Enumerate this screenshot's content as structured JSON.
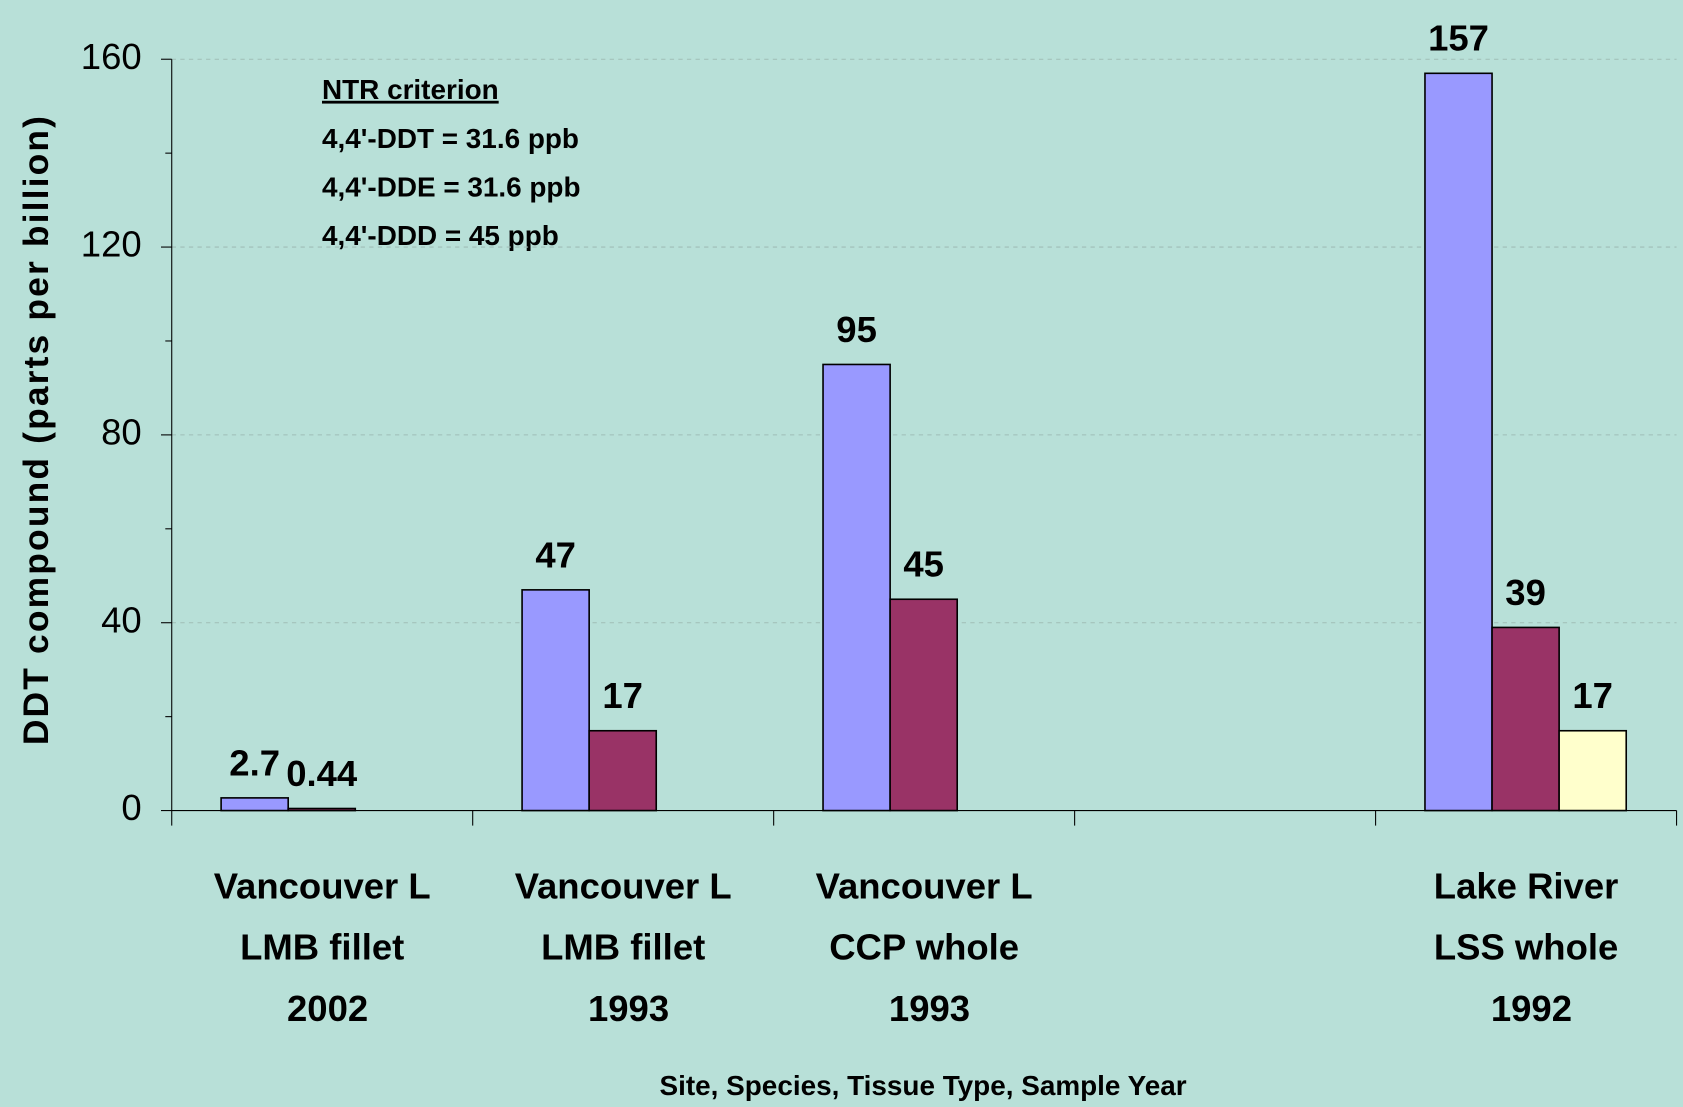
{
  "chart_data": {
    "type": "bar",
    "y_label": "DDT compound (parts per billion)",
    "x_label": "Site, Species, Tissue Type, Sample Year",
    "annotation": {
      "title": "NTR criterion",
      "lines": [
        "4,4'-DDT = 31.6 ppb",
        "4,4'-DDE = 31.6 ppb",
        "4,4'-DDD = 45 ppb"
      ]
    },
    "categories": [
      [
        "Vancouver L",
        "LMB fillet",
        "2002"
      ],
      [
        "Vancouver L",
        "LMB fillet",
        "1993"
      ],
      [
        "Vancouver L",
        "CCP whole",
        "1993"
      ],
      null,
      [
        "Lake River",
        "LSS whole",
        "1992"
      ]
    ],
    "series": [
      {
        "color": "#9999ff",
        "values": [
          2.7,
          47,
          95,
          null,
          157
        ]
      },
      {
        "color": "#993366",
        "values": [
          0.44,
          17,
          45,
          null,
          39
        ]
      },
      {
        "color": "#ffffcc",
        "values": [
          null,
          null,
          null,
          null,
          17
        ]
      }
    ],
    "ylim": [
      0,
      160
    ],
    "yticks": [
      0,
      40,
      80,
      120,
      160
    ],
    "minor_yticks": [
      20,
      60,
      100,
      140
    ],
    "grid": true
  }
}
